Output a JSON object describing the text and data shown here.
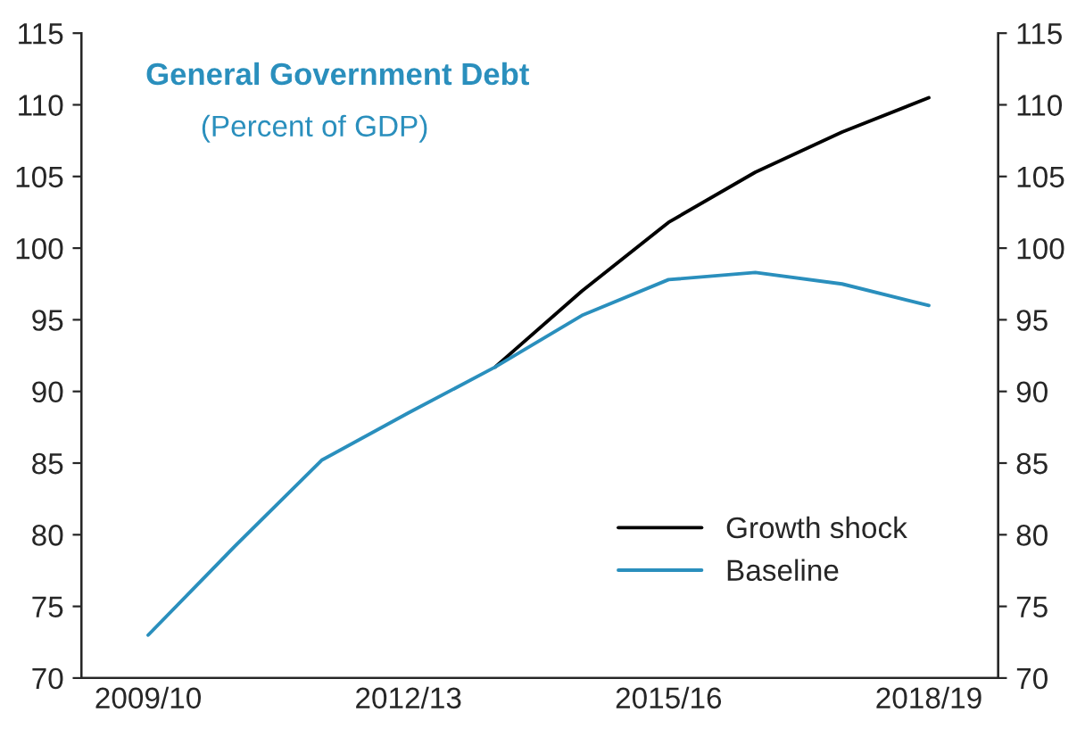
{
  "chart_data": {
    "type": "line",
    "title": "General Government Debt",
    "subtitle": "(Percent of GDP)",
    "categories": [
      "2009/10",
      null,
      null,
      "2012/13",
      null,
      null,
      "2015/16",
      null,
      null,
      "2018/19"
    ],
    "series": [
      {
        "name": "Growth shock",
        "color": "#000000",
        "values": [
          null,
          null,
          null,
          null,
          91.7,
          97.0,
          101.8,
          105.3,
          108.1,
          110.5
        ]
      },
      {
        "name": "Baseline",
        "color": "#2a8fbd",
        "values": [
          73.0,
          79.2,
          85.2,
          88.5,
          91.7,
          95.3,
          97.8,
          98.3,
          97.5,
          96.0
        ]
      }
    ],
    "ylim": [
      70,
      115
    ],
    "yticks": [
      70,
      75,
      80,
      85,
      90,
      95,
      100,
      105,
      110,
      115
    ],
    "y2lim": [
      70,
      115
    ],
    "y2ticks": [
      70,
      75,
      80,
      85,
      90,
      95,
      100,
      105,
      110,
      115
    ],
    "grid": false,
    "legend": "bottom right",
    "marker": "none",
    "line_style": "solid"
  }
}
